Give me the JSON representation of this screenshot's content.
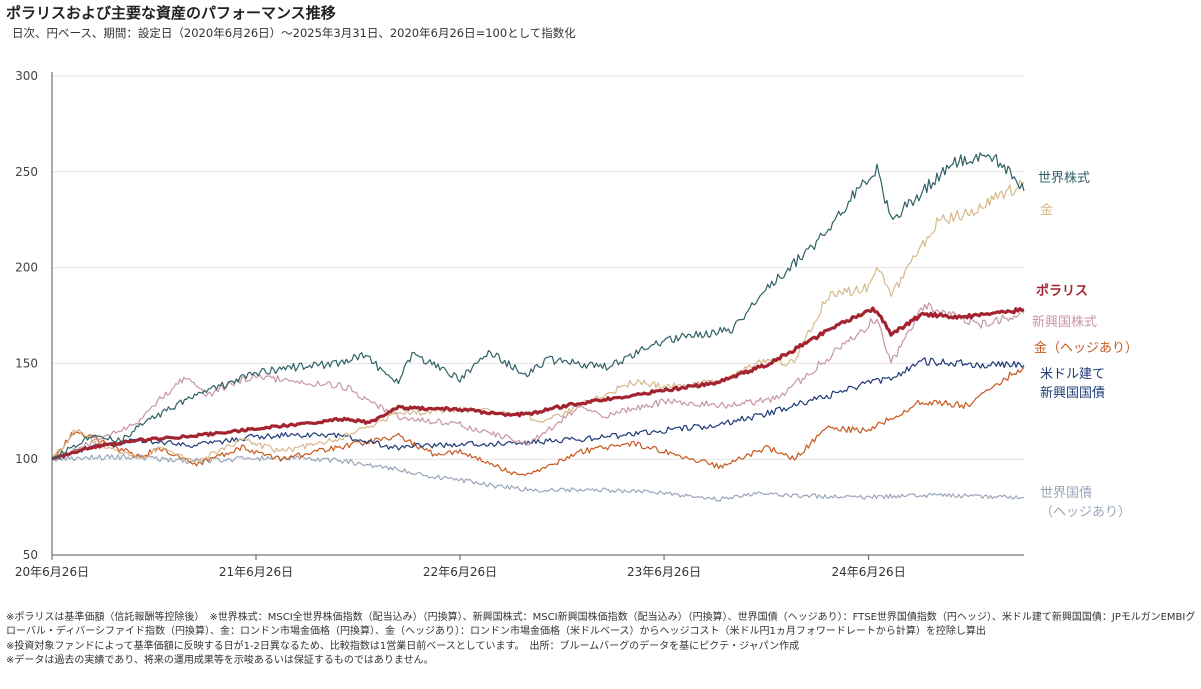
{
  "header": {
    "title": "ポラリスおよび主要な資産のパフォーマンス推移",
    "subtitle": "日次、円ベース、期間：設定日（2020年6月26日）～2025年3月31日、2020年6月26日=100として指数化"
  },
  "chart_data": {
    "type": "line",
    "ylim": [
      50,
      300
    ],
    "yticks": [
      50,
      100,
      150,
      200,
      250,
      300
    ],
    "xlim": [
      "2020-06-26",
      "2025-03-31"
    ],
    "xticks": [
      {
        "date": "2020-06-26",
        "label": "20年6月26日"
      },
      {
        "date": "2021-06-26",
        "label": "21年6月26日"
      },
      {
        "date": "2022-06-26",
        "label": "22年6月26日"
      },
      {
        "date": "2023-06-26",
        "label": "23年6月26日"
      },
      {
        "date": "2024-06-26",
        "label": "24年6月26日"
      }
    ],
    "series": [
      {
        "name": "世界国債（ヘッジあり）",
        "label_lines": [
          "世界国債",
          "（ヘッジあり）"
        ],
        "color": "#9AA6BA",
        "width": 1.2,
        "points": [
          [
            "2020-06-26",
            100
          ],
          [
            "2020-09-01",
            101
          ],
          [
            "2020-12-01",
            101
          ],
          [
            "2021-03-01",
            99
          ],
          [
            "2021-06-01",
            100
          ],
          [
            "2021-09-01",
            101
          ],
          [
            "2021-12-01",
            99
          ],
          [
            "2022-03-01",
            95
          ],
          [
            "2022-05-01",
            91
          ],
          [
            "2022-06-26",
            89
          ],
          [
            "2022-09-01",
            86
          ],
          [
            "2022-11-01",
            84
          ],
          [
            "2023-01-01",
            84
          ],
          [
            "2023-03-01",
            84
          ],
          [
            "2023-06-01",
            83
          ],
          [
            "2023-08-01",
            81
          ],
          [
            "2023-10-01",
            79
          ],
          [
            "2023-12-01",
            82
          ],
          [
            "2024-03-01",
            81
          ],
          [
            "2024-06-01",
            80
          ],
          [
            "2024-09-01",
            81
          ],
          [
            "2024-12-01",
            81
          ],
          [
            "2025-03-31",
            80
          ]
        ]
      },
      {
        "name": "金（ヘッジあり）",
        "label_lines": [
          "金（ヘッジあり）"
        ],
        "color": "#C8581E",
        "width": 1.2,
        "points": [
          [
            "2020-06-26",
            100
          ],
          [
            "2020-08-07",
            115
          ],
          [
            "2020-09-15",
            110
          ],
          [
            "2020-11-30",
            101
          ],
          [
            "2021-01-05",
            106
          ],
          [
            "2021-03-08",
            97
          ],
          [
            "2021-06-01",
            106
          ],
          [
            "2021-08-09",
            100
          ],
          [
            "2021-11-15",
            106
          ],
          [
            "2022-03-08",
            112
          ],
          [
            "2022-05-15",
            102
          ],
          [
            "2022-06-26",
            104
          ],
          [
            "2022-09-26",
            93
          ],
          [
            "2022-11-01",
            92
          ],
          [
            "2023-01-25",
            104
          ],
          [
            "2023-05-03",
            108
          ],
          [
            "2023-06-26",
            104
          ],
          [
            "2023-10-05",
            96
          ],
          [
            "2023-12-28",
            106
          ],
          [
            "2024-02-14",
            100
          ],
          [
            "2024-04-12",
            116
          ],
          [
            "2024-06-26",
            115
          ],
          [
            "2024-09-26",
            130
          ],
          [
            "2024-12-20",
            128
          ],
          [
            "2025-02-01",
            138
          ],
          [
            "2025-03-31",
            148
          ]
        ]
      },
      {
        "name": "米ドル建て新興国国債",
        "label_lines": [
          "米ドル建て",
          "新興国国債"
        ],
        "color": "#1F3A78",
        "width": 1.2,
        "points": [
          [
            "2020-06-26",
            100
          ],
          [
            "2020-09-01",
            106
          ],
          [
            "2020-12-01",
            110
          ],
          [
            "2021-03-01",
            107
          ],
          [
            "2021-06-01",
            111
          ],
          [
            "2021-09-01",
            113
          ],
          [
            "2021-12-01",
            112
          ],
          [
            "2022-03-01",
            106
          ],
          [
            "2022-06-26",
            108
          ],
          [
            "2022-10-01",
            108
          ],
          [
            "2023-01-01",
            110
          ],
          [
            "2023-04-01",
            112
          ],
          [
            "2023-06-26",
            115
          ],
          [
            "2023-10-01",
            118
          ],
          [
            "2024-01-01",
            124
          ],
          [
            "2024-04-01",
            132
          ],
          [
            "2024-06-26",
            140
          ],
          [
            "2024-08-05",
            142
          ],
          [
            "2024-10-01",
            151
          ],
          [
            "2024-12-01",
            150
          ],
          [
            "2025-03-31",
            149
          ]
        ]
      },
      {
        "name": "新興国株式",
        "label_lines": [
          "新興国株式"
        ],
        "color": "#C896A4",
        "width": 1.2,
        "points": [
          [
            "2020-06-26",
            100
          ],
          [
            "2020-09-01",
            108
          ],
          [
            "2020-12-01",
            120
          ],
          [
            "2021-01-01",
            130
          ],
          [
            "2021-02-17",
            142
          ],
          [
            "2021-04-01",
            134
          ],
          [
            "2021-06-26",
            144
          ],
          [
            "2021-09-01",
            140
          ],
          [
            "2021-12-01",
            138
          ],
          [
            "2022-03-08",
            122
          ],
          [
            "2022-06-26",
            118
          ],
          [
            "2022-10-24",
            108
          ],
          [
            "2023-01-26",
            127
          ],
          [
            "2023-03-15",
            123
          ],
          [
            "2023-06-26",
            130
          ],
          [
            "2023-10-26",
            128
          ],
          [
            "2024-01-17",
            132
          ],
          [
            "2024-04-01",
            150
          ],
          [
            "2024-06-26",
            170
          ],
          [
            "2024-07-11",
            174
          ],
          [
            "2024-08-05",
            150
          ],
          [
            "2024-10-01",
            180
          ],
          [
            "2024-12-01",
            175
          ],
          [
            "2025-01-13",
            170
          ],
          [
            "2025-03-31",
            176
          ]
        ]
      },
      {
        "name": "金",
        "label_lines": [
          "金"
        ],
        "color": "#D6B98C",
        "width": 1.2,
        "points": [
          [
            "2020-06-26",
            100
          ],
          [
            "2020-08-07",
            115
          ],
          [
            "2020-09-25",
            107
          ],
          [
            "2020-11-30",
            100
          ],
          [
            "2021-01-05",
            106
          ],
          [
            "2021-03-08",
            98
          ],
          [
            "2021-06-01",
            110
          ],
          [
            "2021-08-09",
            104
          ],
          [
            "2021-11-15",
            110
          ],
          [
            "2022-03-08",
            124
          ],
          [
            "2022-06-26",
            126
          ],
          [
            "2022-09-26",
            125
          ],
          [
            "2022-10-21",
            124
          ],
          [
            "2022-11-15",
            118
          ],
          [
            "2023-01-25",
            128
          ],
          [
            "2023-05-03",
            140
          ],
          [
            "2023-06-26",
            138
          ],
          [
            "2023-10-05",
            140
          ],
          [
            "2023-12-28",
            152
          ],
          [
            "2024-02-14",
            150
          ],
          [
            "2024-04-12",
            185
          ],
          [
            "2024-06-26",
            190
          ],
          [
            "2024-07-11",
            200
          ],
          [
            "2024-08-05",
            185
          ],
          [
            "2024-10-30",
            225
          ],
          [
            "2024-12-20",
            228
          ],
          [
            "2025-02-01",
            235
          ],
          [
            "2025-03-31",
            244
          ]
        ]
      },
      {
        "name": "ポラリス",
        "label_lines": [
          "ポラリス"
        ],
        "color": "#A32430",
        "width": 3.2,
        "bold_label": true,
        "points": [
          [
            "2020-06-26",
            100
          ],
          [
            "2020-09-01",
            106
          ],
          [
            "2020-12-01",
            110
          ],
          [
            "2021-03-01",
            112
          ],
          [
            "2021-06-26",
            116
          ],
          [
            "2021-09-01",
            118
          ],
          [
            "2021-12-01",
            121
          ],
          [
            "2022-01-15",
            119
          ],
          [
            "2022-03-08",
            127
          ],
          [
            "2022-06-26",
            126
          ],
          [
            "2022-09-26",
            123
          ],
          [
            "2022-11-01",
            124
          ],
          [
            "2023-01-01",
            128
          ],
          [
            "2023-04-01",
            132
          ],
          [
            "2023-06-26",
            136
          ],
          [
            "2023-10-01",
            140
          ],
          [
            "2024-01-01",
            150
          ],
          [
            "2024-04-01",
            165
          ],
          [
            "2024-06-26",
            178
          ],
          [
            "2024-07-11",
            178
          ],
          [
            "2024-08-05",
            165
          ],
          [
            "2024-10-01",
            176
          ],
          [
            "2024-12-01",
            174
          ],
          [
            "2025-02-01",
            176
          ],
          [
            "2025-03-31",
            178
          ]
        ]
      },
      {
        "name": "世界株式",
        "label_lines": [
          "世界株式"
        ],
        "color": "#2F6166",
        "width": 1.2,
        "points": [
          [
            "2020-06-26",
            100
          ],
          [
            "2020-09-01",
            112
          ],
          [
            "2020-10-30",
            110
          ],
          [
            "2020-12-01",
            118
          ],
          [
            "2021-03-01",
            132
          ],
          [
            "2021-06-26",
            145
          ],
          [
            "2021-09-01",
            148
          ],
          [
            "2021-12-01",
            150
          ],
          [
            "2022-01-01",
            155
          ],
          [
            "2022-03-08",
            140
          ],
          [
            "2022-04-01",
            155
          ],
          [
            "2022-06-26",
            142
          ],
          [
            "2022-08-16",
            156
          ],
          [
            "2022-10-24",
            144
          ],
          [
            "2022-12-01",
            152
          ],
          [
            "2023-03-15",
            148
          ],
          [
            "2023-06-26",
            162
          ],
          [
            "2023-10-26",
            168
          ],
          [
            "2024-01-01",
            190
          ],
          [
            "2024-04-01",
            215
          ],
          [
            "2024-06-26",
            248
          ],
          [
            "2024-07-11",
            252
          ],
          [
            "2024-08-05",
            225
          ],
          [
            "2024-10-01",
            240
          ],
          [
            "2024-12-01",
            255
          ],
          [
            "2025-01-15",
            258
          ],
          [
            "2025-02-20",
            255
          ],
          [
            "2025-03-31",
            240
          ]
        ]
      }
    ]
  },
  "footer": {
    "notes": [
      "※ポラリスは基準価額（信託報酬等控除後）　※世界株式：MSCI全世界株価指数（配当込み）（円換算）、新興国株式：MSCI新興国株価指数（配当込み）（円換算）、世界国債（ヘッジあり）：FTSE世界国債指数（円ヘッジ）、米ドル建て新興国国債：JPモルガンEMBIグローバル・ディバーシファイド指数（円換算）、金：ロンドン市場金価格（円換算）、金（ヘッジあり）：ロンドン市場金価格（米ドルベース）からヘッジコスト（米ドル円1ヵ月フォワードレートから計算）を控除し算出",
      "※投資対象ファンドによって基準価額に反映する日が1-2日異なるため、比較指数は1営業日前ベースとしています。　出所：ブルームバーグのデータを基にピクテ・ジャパン作成",
      "※データは過去の実績であり、将来の運用成果等を示唆あるいは保証するものではありません。"
    ]
  }
}
